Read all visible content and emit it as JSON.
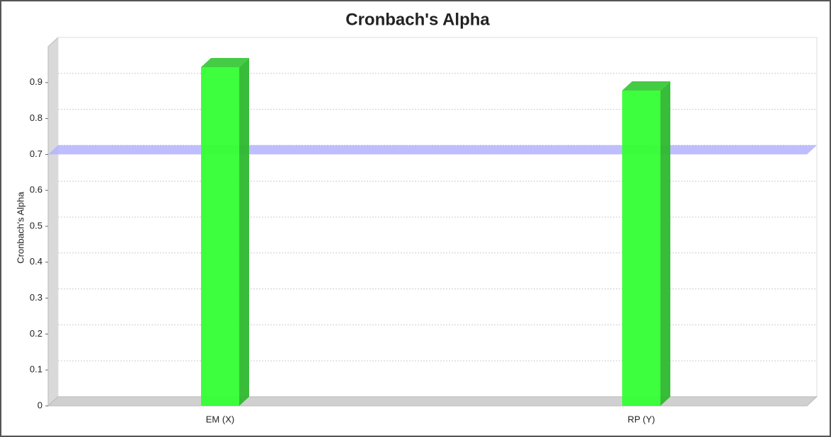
{
  "chart_data": {
    "type": "bar",
    "title": "Cronbach's Alpha",
    "ylabel": "Cronbach's Alpha",
    "categories": [
      "EM (X)",
      "RP (Y)"
    ],
    "values": [
      0.943,
      0.878
    ],
    "color": "#33ff33",
    "reference_line": 0.7,
    "reference_color": "#b3b3ff",
    "ylim": [
      0,
      1
    ],
    "yticks": [
      0,
      0.1,
      0.2,
      0.3,
      0.4,
      0.5,
      0.6,
      0.7,
      0.8,
      0.9
    ],
    "grid": true
  }
}
